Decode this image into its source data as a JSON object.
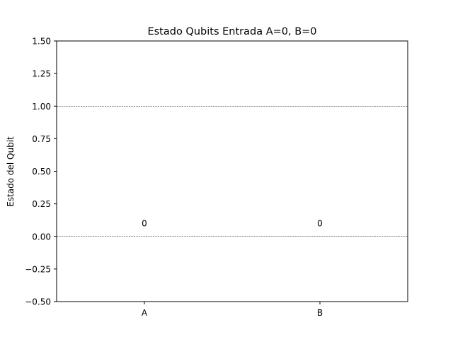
{
  "chart_data": {
    "type": "bar",
    "title": "Estado Qubits Entrada A=0, B=0",
    "xlabel": "",
    "ylabel": "Estado del Qubit",
    "categories": [
      "A",
      "B"
    ],
    "values": [
      0,
      0
    ],
    "data_labels": [
      "0",
      "0"
    ],
    "ylim": [
      -0.5,
      1.5
    ],
    "yticks": [
      -0.5,
      -0.25,
      0.0,
      0.25,
      0.5,
      0.75,
      1.0,
      1.25,
      1.5
    ],
    "ytick_labels": [
      "−0.50",
      "−0.25",
      "0.00",
      "0.25",
      "0.50",
      "0.75",
      "1.00",
      "1.25",
      "1.50"
    ],
    "reference_lines": [
      0,
      1
    ],
    "reference_line_style": "dashed",
    "grid": false,
    "colors": {
      "axes": "#000000",
      "reference_line": "#000000",
      "background": "#ffffff"
    }
  }
}
